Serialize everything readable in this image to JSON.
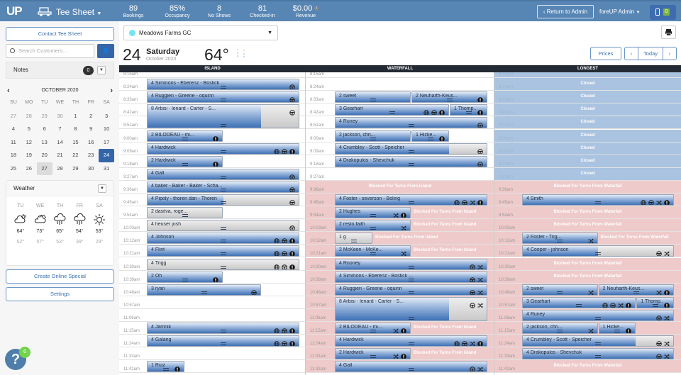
{
  "topbar": {
    "logo": "UP",
    "app_title": "Tee Sheet",
    "stats": [
      {
        "value": "89",
        "label": "Bookings"
      },
      {
        "value": "85%",
        "label": "Occupancy"
      },
      {
        "value": "8",
        "label": "No Shows"
      },
      {
        "value": "81",
        "label": "Checked-in"
      },
      {
        "value": "$0.00",
        "label": "Revenue"
      }
    ],
    "return_label": "Return to Admin",
    "user_label": "foreUP Admin",
    "notification_count": "0"
  },
  "sidebar": {
    "contact_label": "Contact Tee Sheet",
    "search_placeholder": "Search Customers...",
    "notes_label": "Notes",
    "notes_count": "0",
    "calendar": {
      "title": "OCTOBER 2020",
      "dow": [
        "SU",
        "MO",
        "TU",
        "WE",
        "TH",
        "FR",
        "SA"
      ],
      "weeks": [
        [
          "27",
          "28",
          "29",
          "30",
          "1",
          "2",
          "3"
        ],
        [
          "4",
          "5",
          "6",
          "7",
          "8",
          "9",
          "10"
        ],
        [
          "11",
          "12",
          "13",
          "14",
          "15",
          "16",
          "17"
        ],
        [
          "18",
          "19",
          "20",
          "21",
          "22",
          "23",
          "24"
        ],
        [
          "25",
          "26",
          "27",
          "28",
          "29",
          "30",
          "31"
        ]
      ],
      "selected": "24",
      "today": "27"
    },
    "weather": {
      "label": "Weather",
      "days": [
        {
          "dow": "TU",
          "icon": "partly-sunny",
          "high": "64°",
          "low": "52°"
        },
        {
          "dow": "WE",
          "icon": "cloudy",
          "high": "73°",
          "low": "57°"
        },
        {
          "dow": "TH",
          "icon": "rain",
          "high": "65°",
          "low": "53°"
        },
        {
          "dow": "FR",
          "icon": "rain",
          "high": "54°",
          "low": "39°"
        },
        {
          "dow": "SA",
          "icon": "sunny",
          "high": "53°",
          "low": "29°"
        }
      ]
    },
    "create_special_label": "Create Online Special",
    "settings_label": "Settings",
    "help_badge": "6"
  },
  "header": {
    "course": "Meadows Farms GC",
    "course_color": "#74e4f4",
    "day_number": "24",
    "weekday": "Saturday",
    "month_year": "October 2020",
    "temperature": "64°",
    "prices_label": "Prices",
    "today_label": "Today"
  },
  "colors": {
    "topbar": "#5886b4",
    "paid": "#3e71b6",
    "closed": "#a9c3e0",
    "blocked": "#efcaca"
  },
  "grid": {
    "times": [
      "8:15am",
      "8:24am",
      "8:33am",
      "8:42am",
      "8:51am",
      "9:00am",
      "9:09am",
      "9:18am",
      "9:27am",
      "9:36am",
      "9:45am",
      "9:54am",
      "10:03am",
      "10:12am",
      "10:21am",
      "10:30am",
      "10:39am",
      "10:48am",
      "10:57am",
      "11:06am",
      "11:15am",
      "11:24am",
      "11:33am",
      "11:42am"
    ],
    "columns": [
      {
        "name": "ISLAND",
        "closed_label": "Closed",
        "blocked_label": "",
        "row_states": [
          "open",
          "open",
          "open",
          "open",
          "open",
          "open",
          "open",
          "open",
          "open",
          "open",
          "open",
          "open",
          "open",
          "open",
          "open",
          "open",
          "open",
          "open",
          "open",
          "open",
          "open",
          "open",
          "open",
          "open"
        ],
        "bookings": [
          {
            "time": "8:24am",
            "players": 4,
            "name": "Simmons - Eberenz - Bostick ...",
            "icons": [
              "cart"
            ]
          },
          {
            "time": "8:33am",
            "players": 4,
            "name": "Ruggieri - Greene - oquinn",
            "icons": [
              "cart"
            ]
          },
          {
            "time": "8:42am",
            "players": 8,
            "name": "Arbisi - lenard - Carter - S...",
            "icons": [
              "cart"
            ],
            "paid": 0.75
          },
          {
            "time": "9:00am",
            "players": 2,
            "name": "BILODEAU - mi...",
            "icons": [
              "alert"
            ]
          },
          {
            "time": "9:09am",
            "players": 4,
            "name": "Hardwick",
            "icons": [
              "globe",
              "cart",
              "alert"
            ]
          },
          {
            "time": "9:18am",
            "players": 2,
            "name": "Hardwick",
            "icons": [
              "alert"
            ]
          },
          {
            "time": "9:27am",
            "players": 4,
            "name": "Gall",
            "icons": [
              "cart"
            ]
          },
          {
            "time": "9:36am",
            "players": 4,
            "name": "baker - Baker - Baker - Scha...",
            "icons": [
              "cart"
            ]
          },
          {
            "time": "9:45am",
            "players": 4,
            "name": "Pipoly - thoren dan - Thoren",
            "icons": [
              "cart"
            ],
            "paid": 0.5
          },
          {
            "time": "9:54am",
            "players": 2,
            "name": "dasilva, roge...",
            "icons": [],
            "paid": 0
          },
          {
            "time": "10:03am",
            "players": 4,
            "name": "heuser josh",
            "icons": [
              "cart"
            ],
            "paid": 0
          },
          {
            "time": "10:12am",
            "players": 4,
            "name": "Johnson",
            "icons": [
              "globe",
              "cart",
              "alert"
            ]
          },
          {
            "time": "10:21am",
            "players": 4,
            "name": "Flint",
            "icons": [
              "globe",
              "cart",
              "alert"
            ]
          },
          {
            "time": "10:30am",
            "players": 4,
            "name": "Trigg",
            "icons": [
              "globe",
              "cart",
              "alert"
            ],
            "paid": 0
          },
          {
            "time": "10:39am",
            "players": 2,
            "name": "Oh",
            "icons": [
              "alert"
            ]
          },
          {
            "time": "10:48am",
            "players": 3,
            "name": "ryan",
            "icons": [
              "cart"
            ]
          },
          {
            "time": "11:15am",
            "players": 4,
            "name": "Jamnik",
            "icons": [
              "globe",
              "cart",
              "alert"
            ]
          },
          {
            "time": "11:24am",
            "players": 4,
            "name": "Galang",
            "icons": [
              "globe",
              "cart",
              "alert"
            ]
          },
          {
            "time": "11:42am",
            "players": 1,
            "name": "Ruiz",
            "icons": [
              "alert"
            ]
          }
        ]
      },
      {
        "name": "WATERFALL",
        "closed_label": "Closed",
        "blocked_label": "Blocked For Turns From Island",
        "row_states": [
          "open",
          "open",
          "open",
          "open",
          "open",
          "open",
          "open",
          "open",
          "open",
          "blocked-label",
          "blocked",
          "blocked-label",
          "blocked-label",
          "blocked-label",
          "blocked-label",
          "blocked",
          "blocked",
          "blocked",
          "blocked",
          "blocked",
          "blocked-label",
          "blocked",
          "blocked-label",
          "blocked"
        ],
        "bookings": [
          {
            "time": "8:33am",
            "players": 2,
            "name": "sweet",
            "icons": []
          },
          {
            "time": "8:33am",
            "players": 2,
            "name": "Neuharth-Keus...",
            "icons": [
              "alert"
            ]
          },
          {
            "time": "8:42am",
            "players": 3,
            "name": "Gearhart",
            "icons": [
              "globe",
              "cart",
              "alert"
            ]
          },
          {
            "time": "8:42am",
            "players": 1,
            "name": "Thomp...",
            "icons": [
              "alert"
            ]
          },
          {
            "time": "8:51am",
            "players": 4,
            "name": "Runey",
            "icons": [
              "cart"
            ]
          },
          {
            "time": "9:00am",
            "players": 2,
            "name": "jackson, chri...",
            "icons": []
          },
          {
            "time": "9:00am",
            "players": 1,
            "name": "Hicke...",
            "icons": [
              "alert"
            ]
          },
          {
            "time": "9:09am",
            "players": 4,
            "name": "Crumbley - Scott - Speicher",
            "icons": [
              "cart"
            ],
            "paid": 0.75
          },
          {
            "time": "9:18am",
            "players": 4,
            "name": "Drakopulos - Shevchuk",
            "icons": [
              "cart"
            ]
          },
          {
            "time": "9:45am",
            "players": 4,
            "name": "Foster - severson - Boling",
            "icons": [
              "globe",
              "cart",
              "shuffle",
              "alert"
            ]
          },
          {
            "time": "9:54am",
            "players": 2,
            "name": "Hughes",
            "icons": [
              "shuffle",
              "alert"
            ]
          },
          {
            "time": "10:03am",
            "players": 2,
            "name": "resto,faith",
            "icons": [
              "shuffle"
            ]
          },
          {
            "time": "10:12am",
            "players": 1,
            "name": "g",
            "icons": [],
            "paid": 0
          },
          {
            "time": "10:21am",
            "players": 2,
            "name": "McKeen - McKe...",
            "icons": [
              "shuffle"
            ]
          },
          {
            "time": "10:30am",
            "players": 4,
            "name": "Rooney",
            "icons": [
              "cart",
              "shuffle"
            ]
          },
          {
            "time": "10:39am",
            "players": 4,
            "name": "Simmons - Eberenz - Bostick ...",
            "icons": [
              "cart",
              "shuffle"
            ]
          },
          {
            "time": "10:48am",
            "players": 4,
            "name": "Ruggieri - Greene - oquinn",
            "icons": [
              "cart",
              "shuffle"
            ]
          },
          {
            "time": "10:57am",
            "players": 8,
            "name": "Arbisi - lenard - Carter - S...",
            "icons": [
              "cart",
              "shuffle"
            ],
            "paid": 0.75
          },
          {
            "time": "11:15am",
            "players": 2,
            "name": "BILODEAU - mi...",
            "icons": [
              "shuffle",
              "alert"
            ]
          },
          {
            "time": "11:24am",
            "players": 4,
            "name": "Hardwick",
            "icons": [
              "globe",
              "cart",
              "shuffle",
              "alert"
            ]
          },
          {
            "time": "11:33am",
            "players": 2,
            "name": "Hardwick",
            "icons": [
              "shuffle",
              "alert"
            ]
          },
          {
            "time": "11:42am",
            "players": 4,
            "name": "Gall",
            "icons": [
              "cart",
              "shuffle"
            ]
          }
        ]
      },
      {
        "name": "LONGEST",
        "closed_label": "Closed",
        "blocked_label": "Blocked For Turns From Waterfall",
        "row_states": [
          "closed",
          "closed",
          "closed",
          "closed",
          "closed",
          "closed",
          "closed",
          "closed",
          "closed",
          "blocked-label",
          "blocked",
          "blocked-label",
          "blocked-label",
          "blocked-label",
          "blocked",
          "blocked-label",
          "blocked-label",
          "blocked",
          "blocked",
          "blocked",
          "blocked",
          "blocked",
          "blocked",
          "blocked-label"
        ],
        "bookings": [
          {
            "time": "9:45am",
            "players": 4,
            "name": "Smith",
            "icons": [
              "globe",
              "cart",
              "shuffle",
              "alert"
            ]
          },
          {
            "time": "10:12am",
            "players": 2,
            "name": "Foster - Trig...",
            "icons": [
              "shuffle"
            ]
          },
          {
            "time": "10:21am",
            "players": 4,
            "name": "Cooper - johnson",
            "icons": [
              "cart",
              "shuffle"
            ],
            "paid": 0.5
          },
          {
            "time": "10:48am",
            "players": 2,
            "name": "sweet",
            "icons": [
              "shuffle"
            ]
          },
          {
            "time": "10:48am",
            "players": 2,
            "name": "Neuharth-Keus...",
            "icons": [
              "shuffle",
              "alert"
            ]
          },
          {
            "time": "10:57am",
            "players": 3,
            "name": "Gearhart",
            "icons": [
              "globe",
              "cart",
              "shuffle",
              "alert"
            ]
          },
          {
            "time": "10:57am",
            "players": 1,
            "name": "Thomp...",
            "icons": [
              "alert"
            ]
          },
          {
            "time": "11:06am",
            "players": 4,
            "name": "Runey",
            "icons": [
              "cart",
              "shuffle"
            ]
          },
          {
            "time": "11:15am",
            "players": 2,
            "name": "jackson, chri...",
            "icons": [
              "shuffle"
            ]
          },
          {
            "time": "11:15am",
            "players": 1,
            "name": "Hicke...",
            "icons": [
              "alert"
            ]
          },
          {
            "time": "11:24am",
            "players": 4,
            "name": "Crumbley - Scott - Speicher",
            "icons": [
              "cart",
              "shuffle"
            ],
            "paid": 0.75
          },
          {
            "time": "11:33am",
            "players": 4,
            "name": "Drakopulos - Shevchuk",
            "icons": [
              "cart",
              "shuffle"
            ]
          }
        ]
      }
    ]
  }
}
